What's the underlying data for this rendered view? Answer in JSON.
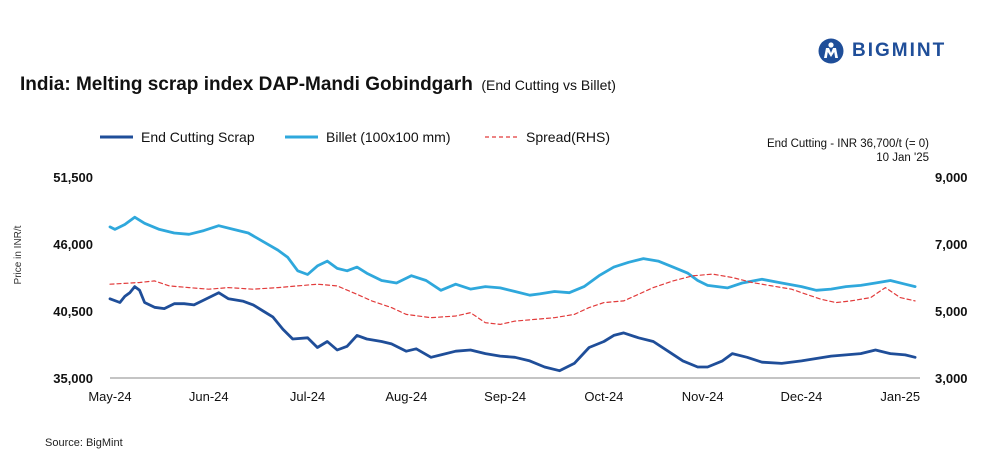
{
  "header": {
    "logo_text": "BIGMINT",
    "title_main": "India: Melting scrap index DAP-Mandi Gobindgarh",
    "title_sub": "(End Cutting vs Billet)",
    "source": "Source: BigMint"
  },
  "annotation": {
    "line1": "End Cutting - INR 36,700/t (= 0)",
    "line2": "10 Jan '25"
  },
  "colors": {
    "end_cutting": "#1f4e99",
    "billet": "#2fa8dc",
    "spread": "#e23b3b",
    "axis": "#888888",
    "brand": "#1f4e99"
  },
  "chart_data": {
    "type": "line",
    "ylabel": "Price in INR/t",
    "x_tick_labels": [
      "May-24",
      "Jun-24",
      "Jul-24",
      "Aug-24",
      "Sep-24",
      "Oct-24",
      "Nov-24",
      "Dec-24",
      "Jan-25"
    ],
    "y_left": {
      "range": [
        35000,
        51500
      ],
      "ticks": [
        35000,
        40500,
        46000,
        51500
      ],
      "tick_labels": [
        "35,000",
        "40,500",
        "46,000",
        "51,500"
      ]
    },
    "y_right": {
      "range": [
        3000,
        9000
      ],
      "ticks": [
        3000,
        5000,
        7000,
        9000
      ],
      "tick_labels": [
        "3,000",
        "5,000",
        "7,000",
        "9,000"
      ]
    },
    "x_range": [
      0,
      8.2
    ],
    "legend_position": "top",
    "series": [
      {
        "name": "End Cutting Scrap",
        "axis": "left",
        "style": "solid",
        "x": [
          0,
          0.1,
          0.15,
          0.2,
          0.25,
          0.3,
          0.35,
          0.45,
          0.55,
          0.65,
          0.75,
          0.85,
          1.0,
          1.1,
          1.2,
          1.35,
          1.45,
          1.55,
          1.65,
          1.75,
          1.85,
          2.0,
          2.1,
          2.2,
          2.3,
          2.4,
          2.5,
          2.6,
          2.75,
          2.85,
          3.0,
          3.1,
          3.25,
          3.35,
          3.5,
          3.65,
          3.8,
          3.95,
          4.1,
          4.25,
          4.4,
          4.55,
          4.7,
          4.85,
          5.0,
          5.1,
          5.2,
          5.35,
          5.5,
          5.65,
          5.8,
          5.95,
          6.05,
          6.2,
          6.3,
          6.45,
          6.6,
          6.8,
          7.0,
          7.15,
          7.3,
          7.45,
          7.6,
          7.75,
          7.9,
          8.05,
          8.15
        ],
        "values": [
          41500,
          41200,
          41700,
          42000,
          42500,
          42200,
          41200,
          40800,
          40700,
          41100,
          41100,
          41000,
          41600,
          42000,
          41500,
          41300,
          41000,
          40500,
          40000,
          39000,
          38200,
          38300,
          37500,
          38000,
          37300,
          37600,
          38500,
          38200,
          38000,
          37800,
          37200,
          37400,
          36700,
          36900,
          37200,
          37300,
          37000,
          36800,
          36700,
          36400,
          35900,
          35600,
          36200,
          37500,
          38000,
          38500,
          38700,
          38300,
          38000,
          37200,
          36400,
          35900,
          35900,
          36400,
          37000,
          36700,
          36300,
          36200,
          36400,
          36600,
          36800,
          36900,
          37000,
          37300,
          37000,
          36900,
          36700
        ]
      },
      {
        "name": "Billet (100x100 mm)",
        "axis": "left",
        "style": "solid",
        "x": [
          0,
          0.05,
          0.15,
          0.25,
          0.35,
          0.5,
          0.65,
          0.8,
          0.95,
          1.1,
          1.25,
          1.4,
          1.55,
          1.7,
          1.8,
          1.9,
          2.0,
          2.1,
          2.2,
          2.3,
          2.4,
          2.5,
          2.6,
          2.75,
          2.9,
          3.05,
          3.2,
          3.35,
          3.5,
          3.65,
          3.8,
          3.95,
          4.1,
          4.25,
          4.35,
          4.5,
          4.65,
          4.8,
          4.95,
          5.1,
          5.25,
          5.4,
          5.55,
          5.7,
          5.85,
          5.95,
          6.05,
          6.15,
          6.25,
          6.4,
          6.6,
          6.8,
          7.0,
          7.15,
          7.3,
          7.45,
          7.6,
          7.75,
          7.9,
          8.05,
          8.15
        ],
        "values": [
          47400,
          47200,
          47600,
          48200,
          47700,
          47200,
          46900,
          46800,
          47100,
          47500,
          47200,
          46900,
          46200,
          45500,
          44900,
          43800,
          43500,
          44200,
          44600,
          44000,
          43800,
          44100,
          43600,
          43000,
          42800,
          43400,
          43000,
          42200,
          42700,
          42300,
          42500,
          42400,
          42100,
          41800,
          41900,
          42100,
          42000,
          42500,
          43400,
          44100,
          44500,
          44800,
          44600,
          44100,
          43600,
          43000,
          42600,
          42500,
          42400,
          42800,
          43100,
          42800,
          42500,
          42200,
          42300,
          42500,
          42600,
          42800,
          43000,
          42700,
          42500
        ]
      },
      {
        "name": "Spread(RHS)",
        "axis": "right",
        "style": "dashed",
        "x": [
          0,
          0.3,
          0.45,
          0.6,
          0.8,
          1.0,
          1.2,
          1.45,
          1.7,
          1.9,
          2.1,
          2.3,
          2.5,
          2.65,
          2.85,
          3.0,
          3.25,
          3.5,
          3.65,
          3.8,
          3.95,
          4.1,
          4.3,
          4.5,
          4.7,
          4.85,
          5.0,
          5.2,
          5.35,
          5.5,
          5.7,
          5.9,
          6.1,
          6.3,
          6.5,
          6.7,
          6.9,
          7.05,
          7.2,
          7.35,
          7.5,
          7.7,
          7.85,
          8.0,
          8.15
        ],
        "values": [
          5800,
          5850,
          5900,
          5750,
          5700,
          5650,
          5700,
          5650,
          5700,
          5750,
          5800,
          5750,
          5500,
          5300,
          5100,
          4900,
          4800,
          4850,
          4950,
          4650,
          4600,
          4700,
          4750,
          4800,
          4900,
          5100,
          5250,
          5300,
          5500,
          5700,
          5900,
          6050,
          6100,
          6000,
          5850,
          5750,
          5650,
          5500,
          5350,
          5250,
          5300,
          5400,
          5700,
          5400,
          5300
        ]
      }
    ]
  }
}
